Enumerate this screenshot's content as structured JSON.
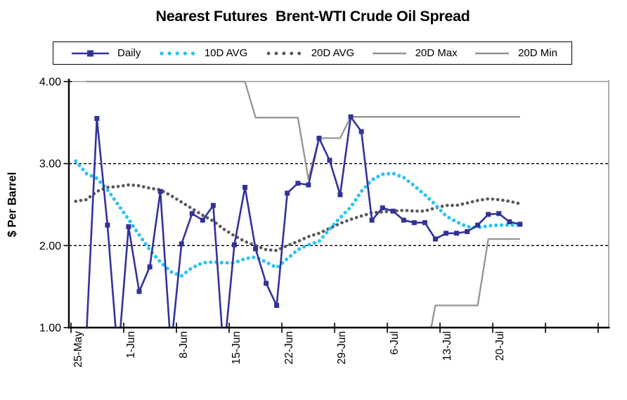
{
  "colors": {
    "axis": "#000000",
    "grid_dashed": "#000000",
    "grid_top_solid": "#9A9A9A",
    "plot_border_right": "#ABABAB",
    "background": "#FFFFFF"
  },
  "chart_data": {
    "type": "line",
    "title": "Nearest Futures  Brent-WTI Crude Oil Spread",
    "ylabel": "$ Per Barrel",
    "ylim": [
      1.0,
      4.0
    ],
    "y_ticks": [
      "4.00",
      "3.00",
      "2.00",
      "1.00"
    ],
    "y_tick_values": [
      4,
      3,
      2,
      1
    ],
    "x_tick_labels": [
      "25-May",
      "1-Jun",
      "8-Jun",
      "15-Jun",
      "22-Jun",
      "29-Jun",
      "6-Jul",
      "13-Jul",
      "20-Jul"
    ],
    "n_x_ticks": 11,
    "x_note": "weekday (trading-day) spacing, 5 points per weekly tick interval; last two weekly ticks unlabeled",
    "legend_position": "top",
    "grid": "horizontal dashed at 2.00 and 3.00, solid gray at 4.00",
    "clip_note": "Daily values below 1.00 plunge beneath the x-axis and are clipped by the plot area",
    "series": [
      {
        "name": "Daily",
        "color": "#32329B",
        "style": "solid-with-square-markers",
        "values": [
          null,
          0.88,
          3.55,
          2.25,
          0.62,
          2.23,
          1.44,
          1.74,
          2.66,
          0.74,
          2.02,
          2.39,
          2.31,
          2.49,
          0.66,
          2.01,
          2.71,
          1.96,
          1.54,
          1.27,
          2.64,
          2.76,
          2.74,
          3.31,
          3.04,
          2.62,
          3.57,
          3.39,
          2.31,
          2.46,
          2.42,
          2.31,
          2.28,
          2.28,
          2.08,
          2.15,
          2.15,
          2.17,
          2.25,
          2.38,
          2.39,
          2.29,
          2.26
        ]
      },
      {
        "name": "10D AVG",
        "color": "#2EC4F3",
        "style": "dotted",
        "values": [
          3.03,
          2.88,
          2.82,
          2.68,
          2.5,
          2.32,
          2.13,
          1.95,
          1.8,
          1.68,
          1.63,
          1.73,
          1.79,
          1.8,
          1.79,
          1.79,
          1.84,
          1.86,
          1.8,
          1.73,
          1.84,
          1.95,
          2.01,
          2.05,
          2.2,
          2.34,
          2.47,
          2.66,
          2.8,
          2.87,
          2.88,
          2.83,
          2.73,
          2.62,
          2.5,
          2.36,
          2.29,
          2.23,
          2.22,
          2.24,
          2.25,
          2.25,
          2.25
        ]
      },
      {
        "name": "20D AVG",
        "color": "#595959",
        "style": "dotted",
        "values": [
          2.54,
          2.56,
          2.66,
          2.71,
          2.72,
          2.74,
          2.73,
          2.7,
          2.68,
          2.61,
          2.53,
          2.45,
          2.37,
          2.3,
          2.2,
          2.12,
          2.05,
          2.0,
          1.95,
          1.94,
          2.0,
          2.05,
          2.11,
          2.15,
          2.21,
          2.27,
          2.32,
          2.36,
          2.4,
          2.41,
          2.42,
          2.43,
          2.42,
          2.42,
          2.46,
          2.49,
          2.49,
          2.52,
          2.55,
          2.57,
          2.56,
          2.54,
          2.51
        ]
      },
      {
        "name": "20D Max",
        "color": "#949494",
        "style": "solid",
        "points": [
          [
            1,
            4.0
          ],
          [
            16,
            4.0
          ],
          [
            17,
            3.56
          ],
          [
            21,
            3.56
          ],
          [
            22,
            2.81
          ],
          [
            23,
            3.31
          ],
          [
            25,
            3.31
          ],
          [
            26,
            3.57
          ],
          [
            42,
            3.57
          ]
        ]
      },
      {
        "name": "20D Min",
        "color": "#949494",
        "style": "solid",
        "points": [
          [
            1,
            1.0
          ],
          [
            33.6,
            1.0
          ],
          [
            34,
            1.27
          ],
          [
            38,
            1.27
          ],
          [
            39,
            2.08
          ],
          [
            42,
            2.08
          ]
        ]
      }
    ]
  }
}
